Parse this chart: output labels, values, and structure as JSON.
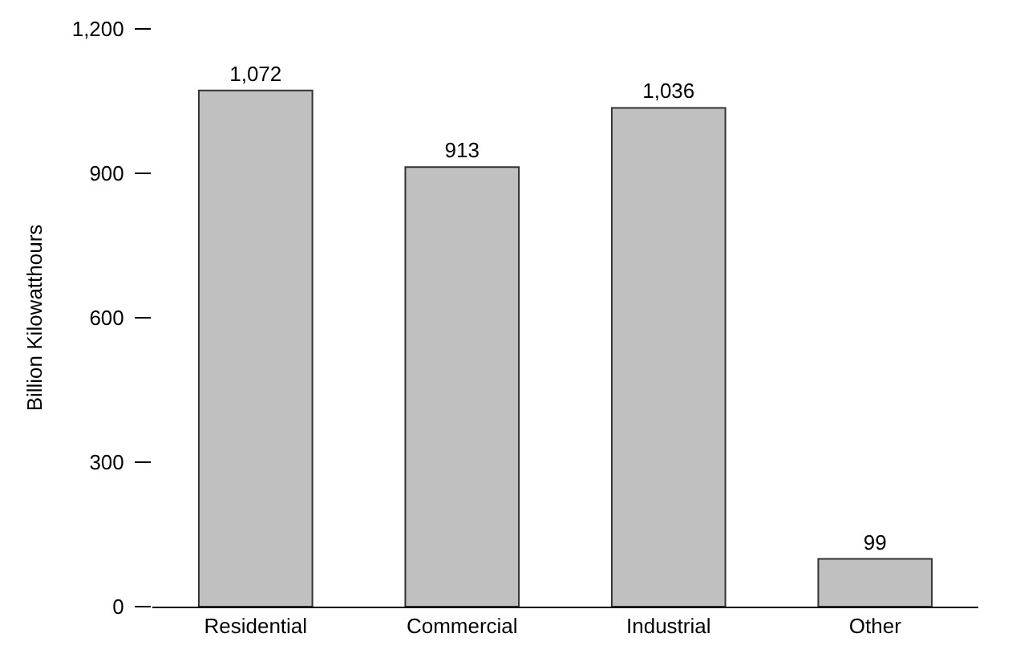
{
  "chart_data": {
    "type": "bar",
    "ylabel": "Billion Kilowatthours",
    "categories": [
      "Residential",
      "Commercial",
      "Industrial",
      "Other"
    ],
    "values": [
      1072,
      913,
      1036,
      99
    ],
    "color": "#c0c0c0",
    "value_labels": [
      "1,072",
      "913",
      "1,036",
      "99"
    ],
    "ylim": [
      0,
      1200
    ],
    "yticks": [
      0,
      300,
      600,
      {
        "value": 900,
        "label": "900"
      },
      {
        "value": 1200,
        "label": "1,200"
      }
    ]
  }
}
